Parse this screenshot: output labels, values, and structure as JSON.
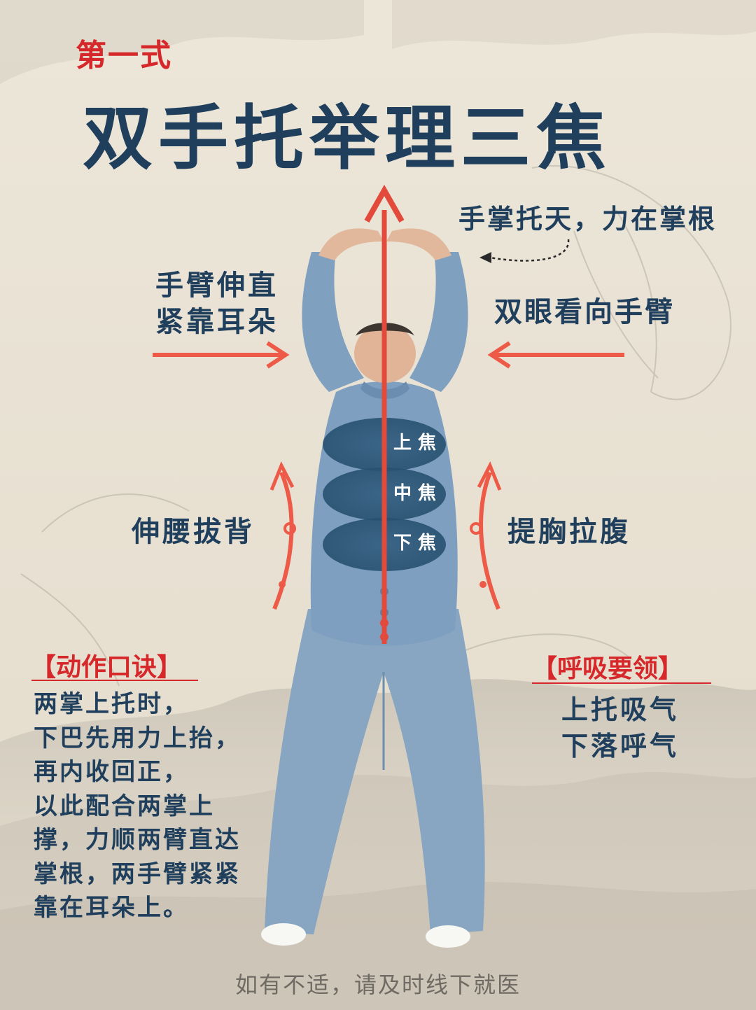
{
  "header": {
    "form_label": "第一式",
    "title": "双手托举理三焦"
  },
  "annotations": {
    "palm": "手掌托天，力在掌根",
    "arms": [
      "手臂伸直",
      "紧靠耳朵"
    ],
    "eyes": "双眼看向手臂",
    "waist": "伸腰拔背",
    "chest": "提胸拉腹"
  },
  "zones": [
    "上 焦",
    "中 焦",
    "下 焦"
  ],
  "action": {
    "heading": "【动作口诀】",
    "lines": [
      "两掌上托时，",
      "下巴先用力上抬，",
      "再内收回正，",
      "以此配合两掌上",
      "撑，力顺两臂直达",
      "掌根，两手臂紧紧",
      "靠在耳朵上。"
    ]
  },
  "breathing": {
    "heading": "【呼吸要领】",
    "lines": [
      "上托吸气",
      "下落呼气"
    ]
  },
  "footer": "如有不适，请及时线下就医",
  "colors": {
    "navy": "#1f3f5c",
    "red": "#d6282a",
    "arrow": "#ee5a48",
    "paper": "#e9e2d4",
    "clothing": "#7e9fbf"
  },
  "icons": [
    "arrow-up-icon",
    "arrow-right-icon",
    "arrow-left-icon",
    "curved-arrow-up-icon"
  ]
}
